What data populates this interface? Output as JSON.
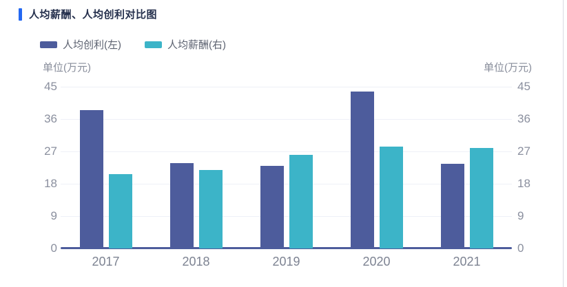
{
  "title": "人均薪酬、人均创利对比图",
  "colors": {
    "accent": "#2468f2",
    "profit_series": "#4d5c9c",
    "salary_series": "#3cb4c8",
    "axis_line": "#4d5c9c",
    "grid_line": "#eef0f7",
    "divider": "#d8dbe2"
  },
  "legend": {
    "items": [
      {
        "label": "人均创利(左)",
        "color": "#4d5c9c"
      },
      {
        "label": "人均薪酬(右)",
        "color": "#3cb4c8"
      }
    ]
  },
  "axes": {
    "left_unit": "单位(万元)",
    "right_unit": "单位(万元)"
  },
  "chart_data": {
    "type": "bar",
    "title": "人均薪酬、人均创利对比图",
    "categories": [
      "2017",
      "2018",
      "2019",
      "2020",
      "2021"
    ],
    "series": [
      {
        "name": "人均创利(左)",
        "axis": "left",
        "color": "#4d5c9c",
        "values": [
          38.5,
          23.7,
          23.0,
          43.6,
          23.5
        ]
      },
      {
        "name": "人均薪酬(右)",
        "axis": "right",
        "color": "#3cb4c8",
        "values": [
          20.6,
          21.8,
          26.1,
          28.3,
          28.0
        ]
      }
    ],
    "left_ylabel": "单位(万元)",
    "right_ylabel": "单位(万元)",
    "left_ylim": [
      0,
      45
    ],
    "right_ylim": [
      0,
      45
    ],
    "yticks": [
      0,
      9,
      18,
      27,
      36,
      45
    ],
    "grid": true,
    "legend_position": "top-left"
  }
}
